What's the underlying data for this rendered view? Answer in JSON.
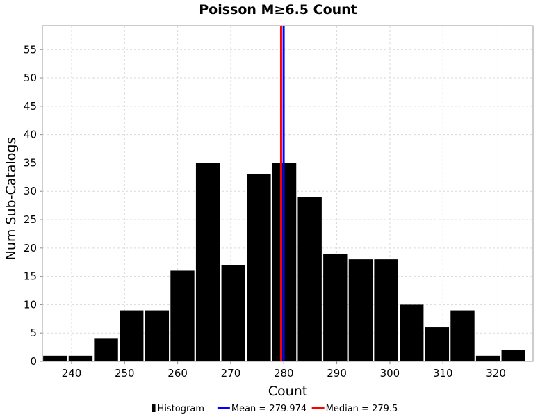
{
  "chart_data": {
    "type": "bar",
    "title": "Poisson M≥6.5 Count",
    "xlabel": "Count",
    "ylabel": "Num Sub-Catalogs",
    "xlim": [
      234.5,
      327
    ],
    "ylim": [
      0,
      59.2
    ],
    "xticks": [
      240,
      250,
      260,
      270,
      280,
      290,
      300,
      310,
      320
    ],
    "yticks": [
      0,
      5,
      10,
      15,
      20,
      25,
      30,
      35,
      40,
      45,
      50,
      55
    ],
    "bin_width": 4.8,
    "grid": true,
    "series": [
      {
        "name": "Histogram",
        "color": "#000000",
        "bins": [
          {
            "center": 236.9,
            "value": 1
          },
          {
            "center": 241.7,
            "value": 1
          },
          {
            "center": 246.5,
            "value": 4
          },
          {
            "center": 251.3,
            "value": 9
          },
          {
            "center": 256.1,
            "value": 9
          },
          {
            "center": 260.9,
            "value": 16
          },
          {
            "center": 265.7,
            "value": 35
          },
          {
            "center": 270.5,
            "value": 17
          },
          {
            "center": 275.3,
            "value": 33
          },
          {
            "center": 280.1,
            "value": 35
          },
          {
            "center": 284.9,
            "value": 29
          },
          {
            "center": 289.7,
            "value": 19
          },
          {
            "center": 294.5,
            "value": 18
          },
          {
            "center": 299.3,
            "value": 18
          },
          {
            "center": 304.1,
            "value": 10
          },
          {
            "center": 308.9,
            "value": 6
          },
          {
            "center": 313.7,
            "value": 9
          },
          {
            "center": 318.5,
            "value": 1
          },
          {
            "center": 323.3,
            "value": 2
          }
        ]
      }
    ],
    "lines": [
      {
        "name": "Mean = 279.974",
        "x": 279.974,
        "color": "#0000ff"
      },
      {
        "name": "Median = 279.5",
        "x": 279.5,
        "color": "#ff0000"
      }
    ],
    "legend_placement": "bottom-center"
  }
}
